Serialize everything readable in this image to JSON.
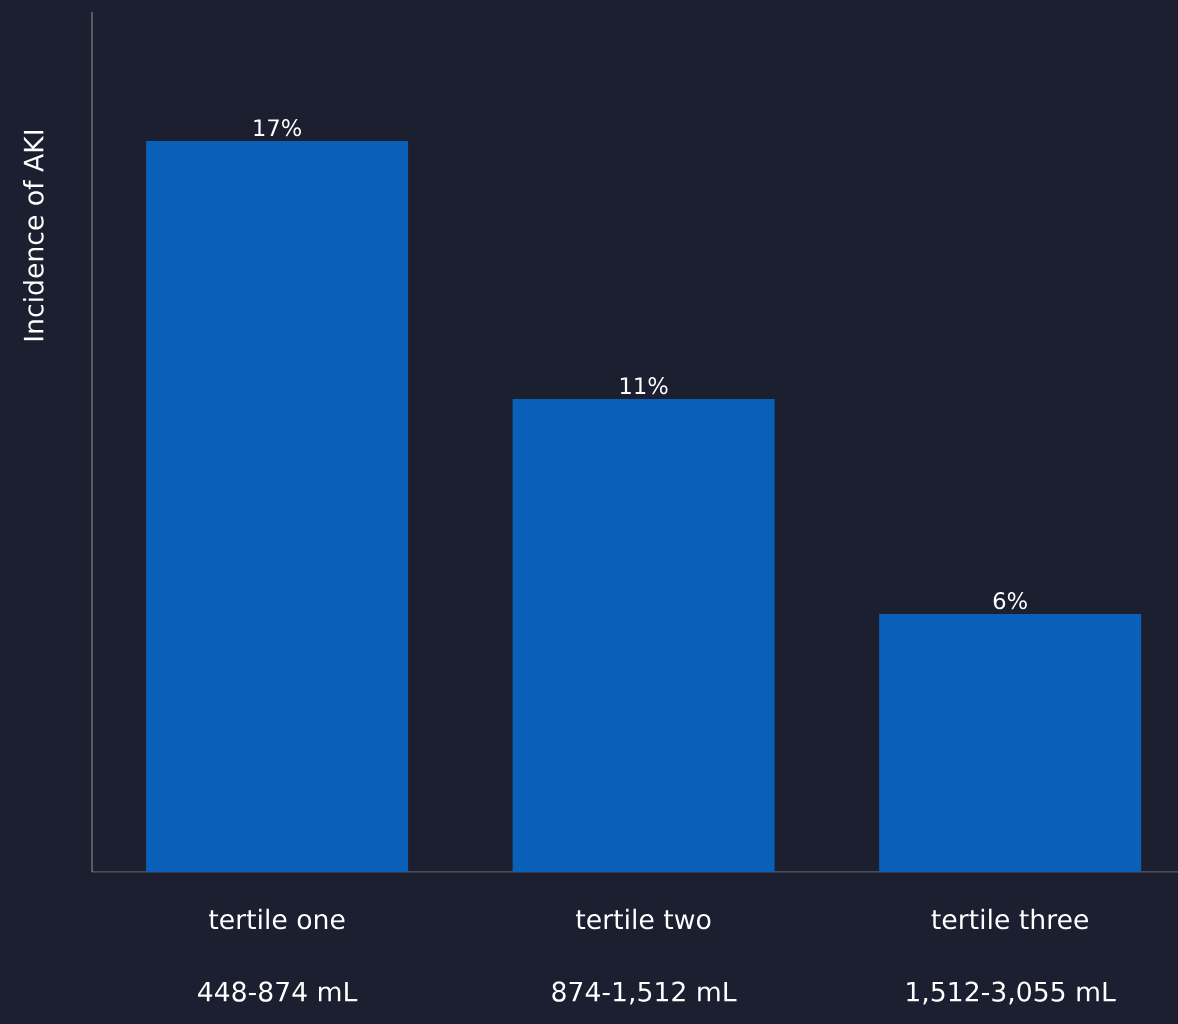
{
  "chart_data": {
    "type": "bar",
    "ylabel": "Incidence of AKI",
    "categories": [
      "tertile one",
      "tertile two",
      "tertile three"
    ],
    "values": [
      17,
      11,
      6
    ],
    "value_labels": [
      "17%",
      "11%",
      "6%"
    ],
    "color": "#0a5fb8",
    "ylim": [
      0,
      20
    ],
    "tick_labels": "x",
    "annotations": [
      "448-874 mL",
      "874-1,512 mL",
      "1,512-3,055 mL"
    ]
  }
}
